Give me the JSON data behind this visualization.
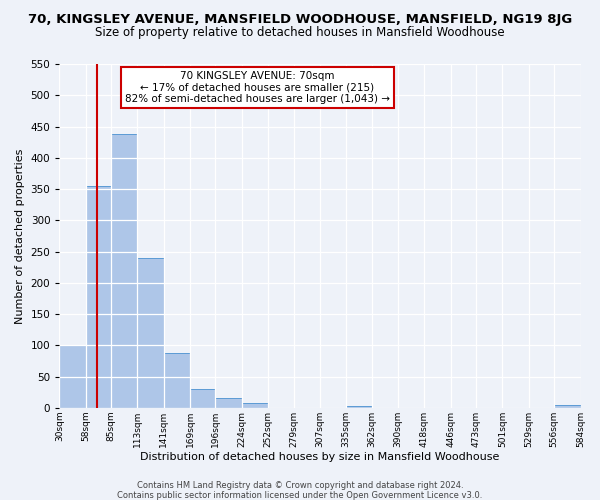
{
  "title": "70, KINGSLEY AVENUE, MANSFIELD WOODHOUSE, MANSFIELD, NG19 8JG",
  "subtitle": "Size of property relative to detached houses in Mansfield Woodhouse",
  "xlabel": "Distribution of detached houses by size in Mansfield Woodhouse",
  "ylabel": "Number of detached properties",
  "bin_edges": [
    30,
    58,
    85,
    113,
    141,
    169,
    196,
    224,
    252,
    279,
    307,
    335,
    362,
    390,
    418,
    446,
    473,
    501,
    529,
    556,
    584
  ],
  "bar_heights": [
    100,
    355,
    438,
    240,
    88,
    30,
    15,
    7,
    0,
    0,
    0,
    3,
    0,
    0,
    0,
    0,
    0,
    0,
    0,
    5
  ],
  "bar_color": "#aec6e8",
  "bar_edge_color": "#5b9bd5",
  "red_line_x": 70,
  "red_line_color": "#cc0000",
  "annotation_box_text": "70 KINGSLEY AVENUE: 70sqm\n← 17% of detached houses are smaller (215)\n82% of semi-detached houses are larger (1,043) →",
  "ylim": [
    0,
    550
  ],
  "yticks": [
    0,
    50,
    100,
    150,
    200,
    250,
    300,
    350,
    400,
    450,
    500,
    550
  ],
  "tick_labels": [
    "30sqm",
    "58sqm",
    "85sqm",
    "113sqm",
    "141sqm",
    "169sqm",
    "196sqm",
    "224sqm",
    "252sqm",
    "279sqm",
    "307sqm",
    "335sqm",
    "362sqm",
    "390sqm",
    "418sqm",
    "446sqm",
    "473sqm",
    "501sqm",
    "529sqm",
    "556sqm",
    "584sqm"
  ],
  "footer_line1": "Contains HM Land Registry data © Crown copyright and database right 2024.",
  "footer_line2": "Contains public sector information licensed under the Open Government Licence v3.0.",
  "bg_color": "#eef2f9",
  "grid_color": "#ffffff",
  "title_fontsize": 9.5,
  "subtitle_fontsize": 8.5
}
